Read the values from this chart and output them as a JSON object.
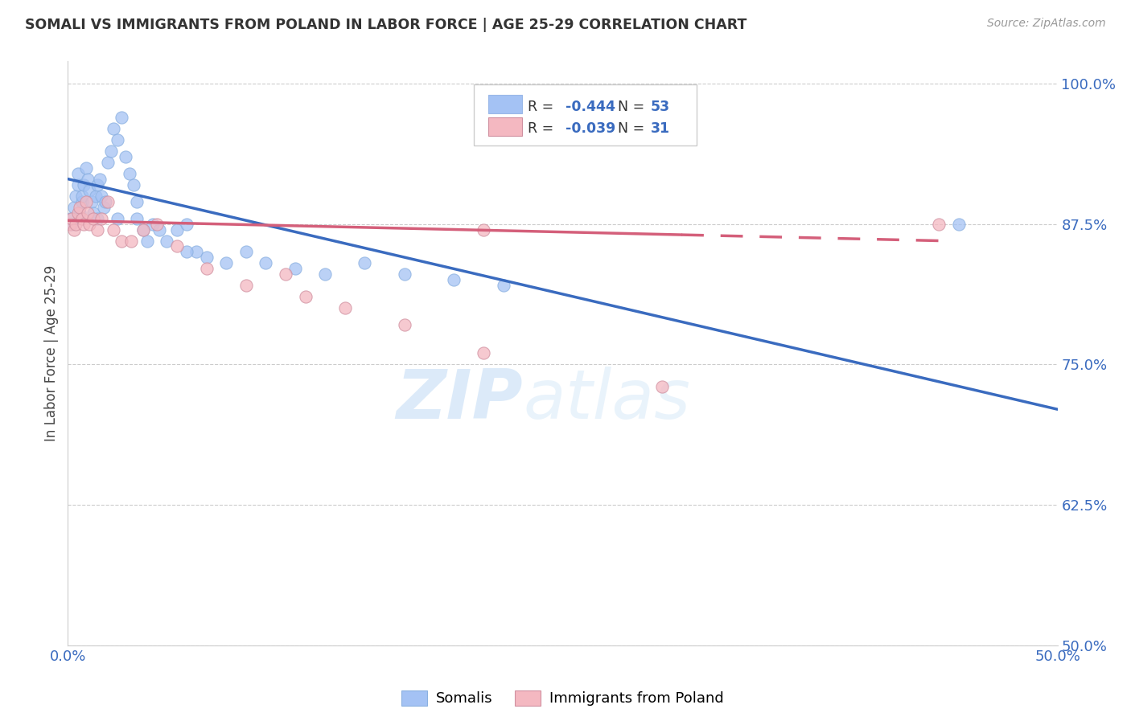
{
  "title": "SOMALI VS IMMIGRANTS FROM POLAND IN LABOR FORCE | AGE 25-29 CORRELATION CHART",
  "source": "Source: ZipAtlas.com",
  "ylabel": "In Labor Force | Age 25-29",
  "xlim": [
    0.0,
    0.5
  ],
  "ylim": [
    0.5,
    1.02
  ],
  "xtick_positions": [
    0.0,
    0.1,
    0.2,
    0.3,
    0.4,
    0.5
  ],
  "xticklabels": [
    "0.0%",
    "",
    "",
    "",
    "",
    "50.0%"
  ],
  "ytick_positions": [
    0.5,
    0.625,
    0.75,
    0.875,
    1.0
  ],
  "ytick_labels": [
    "50.0%",
    "62.5%",
    "75.0%",
    "87.5%",
    "100.0%"
  ],
  "somali_color": "#a4c2f4",
  "poland_color": "#f4b8c1",
  "trend_somali_color": "#3a6bbf",
  "trend_poland_color": "#d45f7a",
  "watermark_zip": "ZIP",
  "watermark_atlas": "atlas",
  "legend_R_somali": "-0.444",
  "legend_N_somali": "53",
  "legend_R_poland": "-0.039",
  "legend_N_poland": "31",
  "somali_x": [
    0.001,
    0.002,
    0.003,
    0.004,
    0.005,
    0.005,
    0.006,
    0.007,
    0.007,
    0.008,
    0.009,
    0.01,
    0.011,
    0.012,
    0.013,
    0.014,
    0.015,
    0.016,
    0.017,
    0.018,
    0.019,
    0.02,
    0.022,
    0.023,
    0.025,
    0.027,
    0.029,
    0.031,
    0.033,
    0.035,
    0.038,
    0.04,
    0.043,
    0.046,
    0.05,
    0.055,
    0.06,
    0.065,
    0.07,
    0.08,
    0.09,
    0.1,
    0.115,
    0.13,
    0.15,
    0.17,
    0.195,
    0.22,
    0.06,
    0.035,
    0.025,
    0.015,
    0.45
  ],
  "somali_y": [
    0.88,
    0.875,
    0.89,
    0.9,
    0.91,
    0.92,
    0.885,
    0.895,
    0.9,
    0.91,
    0.925,
    0.915,
    0.905,
    0.895,
    0.885,
    0.9,
    0.91,
    0.915,
    0.9,
    0.89,
    0.895,
    0.93,
    0.94,
    0.96,
    0.95,
    0.97,
    0.935,
    0.92,
    0.91,
    0.895,
    0.87,
    0.86,
    0.875,
    0.87,
    0.86,
    0.87,
    0.875,
    0.85,
    0.845,
    0.84,
    0.85,
    0.84,
    0.835,
    0.83,
    0.84,
    0.83,
    0.825,
    0.82,
    0.85,
    0.88,
    0.88,
    0.88,
    0.875
  ],
  "poland_x": [
    0.001,
    0.002,
    0.003,
    0.004,
    0.005,
    0.006,
    0.007,
    0.008,
    0.009,
    0.01,
    0.011,
    0.013,
    0.015,
    0.017,
    0.02,
    0.023,
    0.027,
    0.032,
    0.038,
    0.045,
    0.055,
    0.07,
    0.09,
    0.11,
    0.14,
    0.17,
    0.21,
    0.3,
    0.21,
    0.12,
    0.44
  ],
  "poland_y": [
    0.875,
    0.88,
    0.87,
    0.875,
    0.885,
    0.89,
    0.88,
    0.875,
    0.895,
    0.885,
    0.875,
    0.88,
    0.87,
    0.88,
    0.895,
    0.87,
    0.86,
    0.86,
    0.87,
    0.875,
    0.855,
    0.835,
    0.82,
    0.83,
    0.8,
    0.785,
    0.76,
    0.73,
    0.87,
    0.81,
    0.875
  ],
  "somali_trend_x0": 0.0,
  "somali_trend_x1": 0.5,
  "somali_trend_y0": 0.915,
  "somali_trend_y1": 0.71,
  "poland_trend_x0": 0.0,
  "poland_trend_x1": 0.44,
  "poland_trend_y0": 0.878,
  "poland_trend_y1": 0.86
}
